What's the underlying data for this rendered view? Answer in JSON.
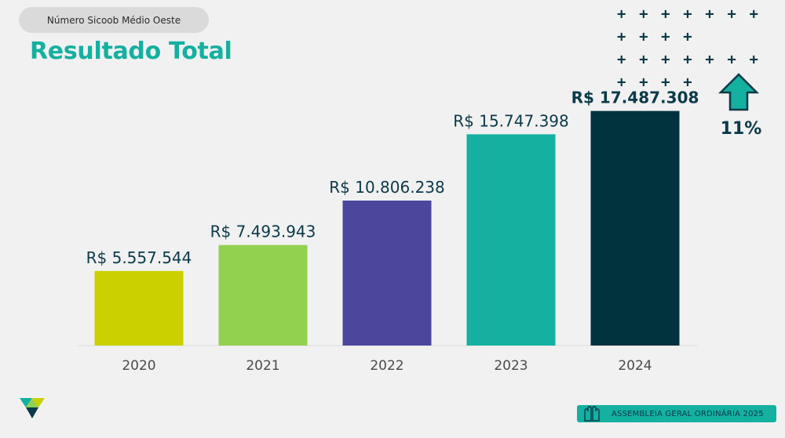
{
  "header": {
    "pill_label": "Número Sicoob Médio Oeste",
    "title": "Resultado Total"
  },
  "decoration": {
    "plus_row": "+ + + + + + + + + + +",
    "plus_color": "#0b3a48"
  },
  "growth": {
    "icon": "up-arrow-icon",
    "value_label": "11%",
    "icon_color": "#14b0a0"
  },
  "footer": {
    "icon": "raised-hands-icon",
    "text": "ASSEMBLEIA GERAL ORDINÁRIA 2025"
  },
  "logo": {
    "name": "sicoob-logo",
    "colors": [
      "#c9d200",
      "#14b0a0",
      "#0b3a48"
    ]
  },
  "chart_data": {
    "type": "bar",
    "categories": [
      "2020",
      "2021",
      "2022",
      "2023",
      "2024"
    ],
    "values": [
      5557544,
      7493943,
      10806238,
      15747398,
      17487308
    ],
    "value_labels": [
      "R$ 5.557.544",
      "R$ 7.493.943",
      "R$ 10.806.238",
      "R$ 15.747.398",
      "R$ 17.487.308"
    ],
    "bar_colors": [
      "#c9d200",
      "#92d050",
      "#4b479c",
      "#14b0a0",
      "#00333e"
    ],
    "bold_last_label": true,
    "ylim": [
      0,
      19800000
    ],
    "grid": false,
    "legend": "none",
    "xlabel": "",
    "ylabel": ""
  }
}
